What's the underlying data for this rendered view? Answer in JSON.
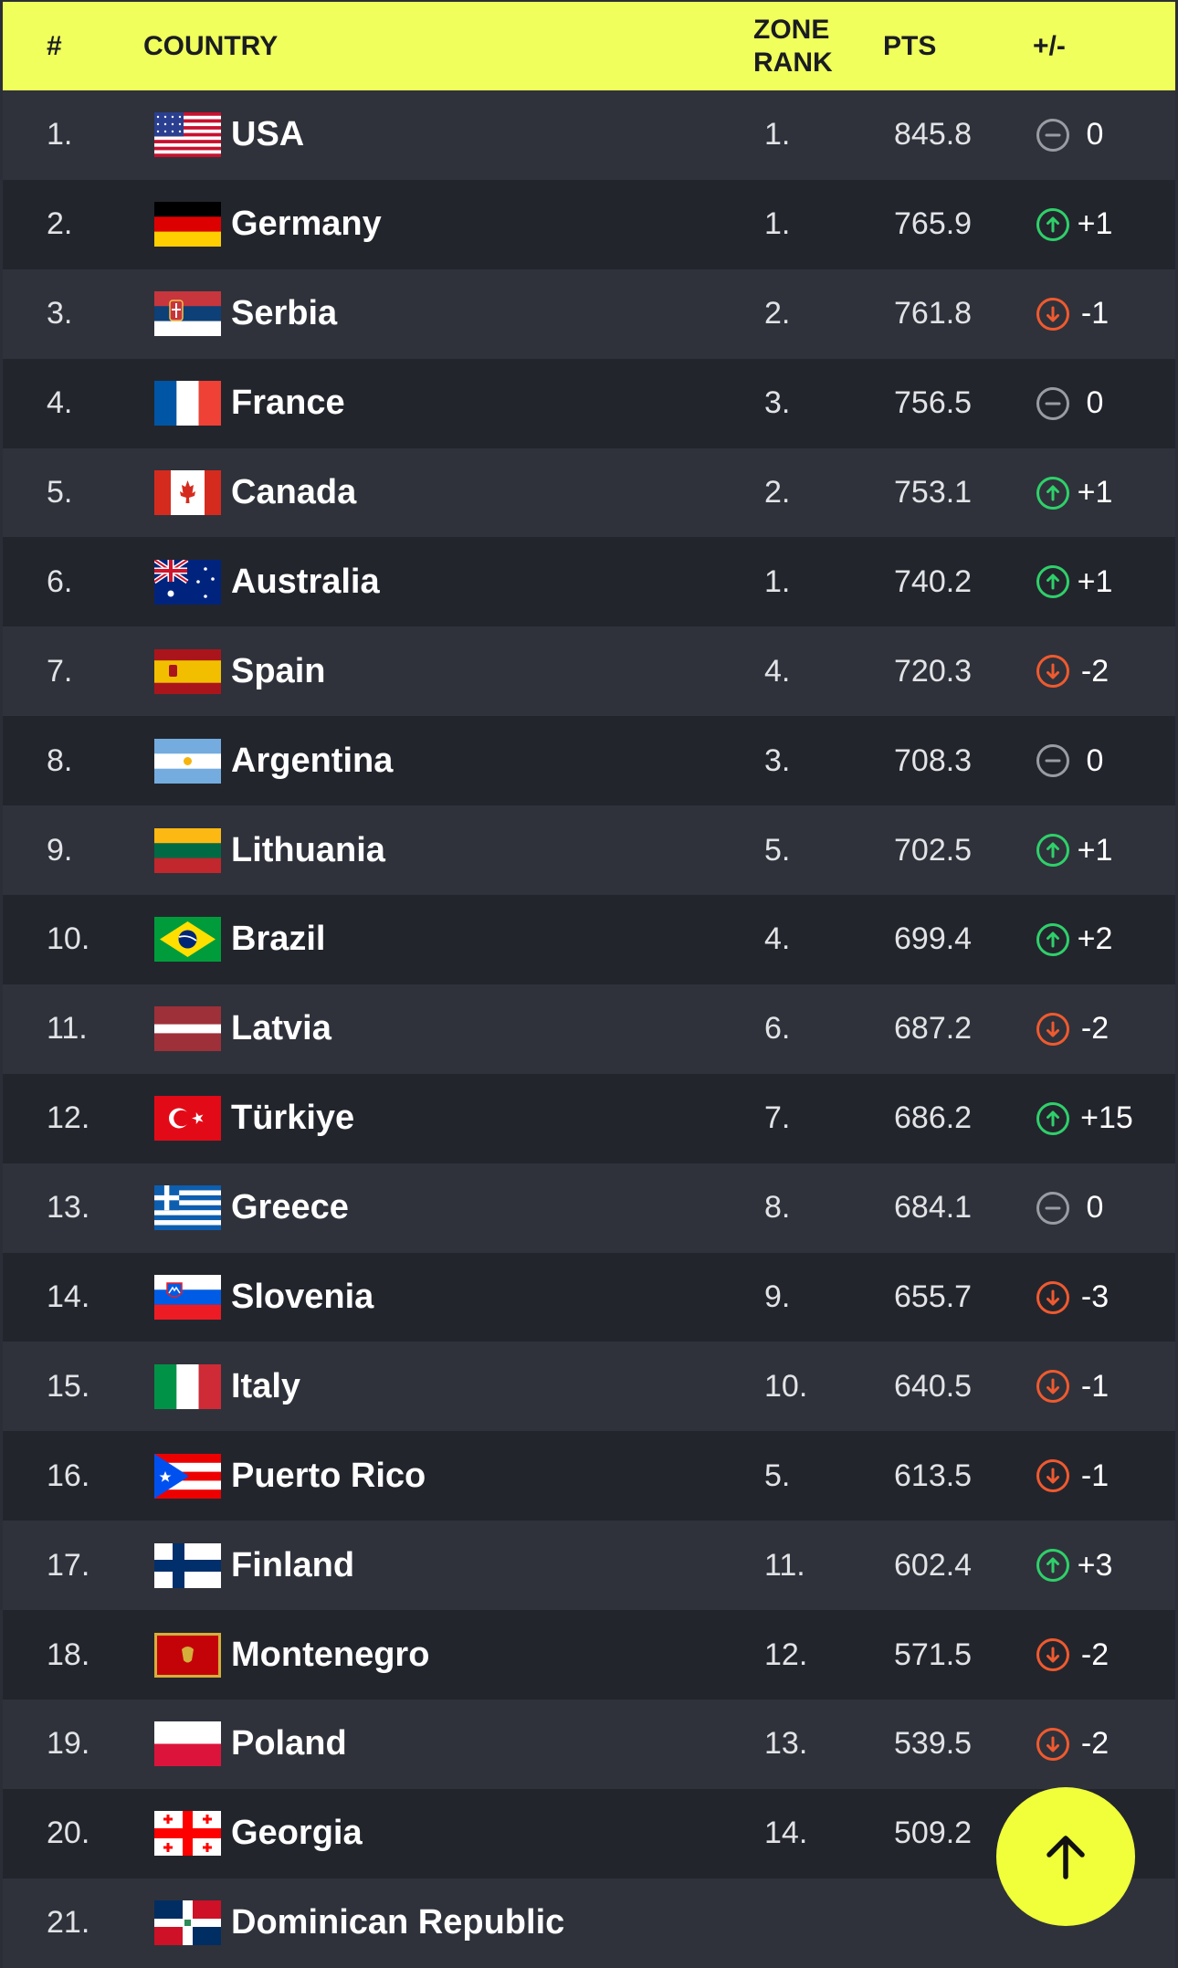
{
  "header": {
    "num": "#",
    "country": "COUNTRY",
    "zone_line1": "ZONE",
    "zone_line2": "RANK",
    "pts": "PTS",
    "change": "+/-"
  },
  "colors": {
    "header_bg": "#f0ff5c",
    "up": "#2fd06a",
    "down": "#ef5a2f",
    "same": "#9a9ca3"
  },
  "rows": [
    {
      "rank": "1.",
      "country": "USA",
      "flag": "usa",
      "zone": "1.",
      "pts": "845.8",
      "trend": "same",
      "change": "0"
    },
    {
      "rank": "2.",
      "country": "Germany",
      "flag": "germany",
      "zone": "1.",
      "pts": "765.9",
      "trend": "up",
      "change": "+1"
    },
    {
      "rank": "3.",
      "country": "Serbia",
      "flag": "serbia",
      "zone": "2.",
      "pts": "761.8",
      "trend": "down",
      "change": "-1"
    },
    {
      "rank": "4.",
      "country": "France",
      "flag": "france",
      "zone": "3.",
      "pts": "756.5",
      "trend": "same",
      "change": "0"
    },
    {
      "rank": "5.",
      "country": "Canada",
      "flag": "canada",
      "zone": "2.",
      "pts": "753.1",
      "trend": "up",
      "change": "+1"
    },
    {
      "rank": "6.",
      "country": "Australia",
      "flag": "australia",
      "zone": "1.",
      "pts": "740.2",
      "trend": "up",
      "change": "+1"
    },
    {
      "rank": "7.",
      "country": "Spain",
      "flag": "spain",
      "zone": "4.",
      "pts": "720.3",
      "trend": "down",
      "change": "-2"
    },
    {
      "rank": "8.",
      "country": "Argentina",
      "flag": "argentina",
      "zone": "3.",
      "pts": "708.3",
      "trend": "same",
      "change": "0"
    },
    {
      "rank": "9.",
      "country": "Lithuania",
      "flag": "lithuania",
      "zone": "5.",
      "pts": "702.5",
      "trend": "up",
      "change": "+1"
    },
    {
      "rank": "10.",
      "country": "Brazil",
      "flag": "brazil",
      "zone": "4.",
      "pts": "699.4",
      "trend": "up",
      "change": "+2"
    },
    {
      "rank": "11.",
      "country": "Latvia",
      "flag": "latvia",
      "zone": "6.",
      "pts": "687.2",
      "trend": "down",
      "change": "-2"
    },
    {
      "rank": "12.",
      "country": "Türkiye",
      "flag": "turkiye",
      "zone": "7.",
      "pts": "686.2",
      "trend": "up",
      "change": "+15"
    },
    {
      "rank": "13.",
      "country": "Greece",
      "flag": "greece",
      "zone": "8.",
      "pts": "684.1",
      "trend": "same",
      "change": "0"
    },
    {
      "rank": "14.",
      "country": "Slovenia",
      "flag": "slovenia",
      "zone": "9.",
      "pts": "655.7",
      "trend": "down",
      "change": "-3"
    },
    {
      "rank": "15.",
      "country": "Italy",
      "flag": "italy",
      "zone": "10.",
      "pts": "640.5",
      "trend": "down",
      "change": "-1"
    },
    {
      "rank": "16.",
      "country": "Puerto Rico",
      "flag": "puerto-rico",
      "zone": "5.",
      "pts": "613.5",
      "trend": "down",
      "change": "-1"
    },
    {
      "rank": "17.",
      "country": "Finland",
      "flag": "finland",
      "zone": "11.",
      "pts": "602.4",
      "trend": "up",
      "change": "+3"
    },
    {
      "rank": "18.",
      "country": "Montenegro",
      "flag": "montenegro",
      "zone": "12.",
      "pts": "571.5",
      "trend": "down",
      "change": "-2"
    },
    {
      "rank": "19.",
      "country": "Poland",
      "flag": "poland",
      "zone": "13.",
      "pts": "539.5",
      "trend": "down",
      "change": "-2"
    },
    {
      "rank": "20.",
      "country": "Georgia",
      "flag": "georgia",
      "zone": "14.",
      "pts": "509.2",
      "trend": "",
      "change": ""
    },
    {
      "rank": "21.",
      "country": "Dominican Republic",
      "flag": "dominican-republic",
      "zone": "",
      "pts": "",
      "trend": "",
      "change": ""
    }
  ],
  "scroll_top_button": {
    "icon": "arrow-up-icon"
  }
}
